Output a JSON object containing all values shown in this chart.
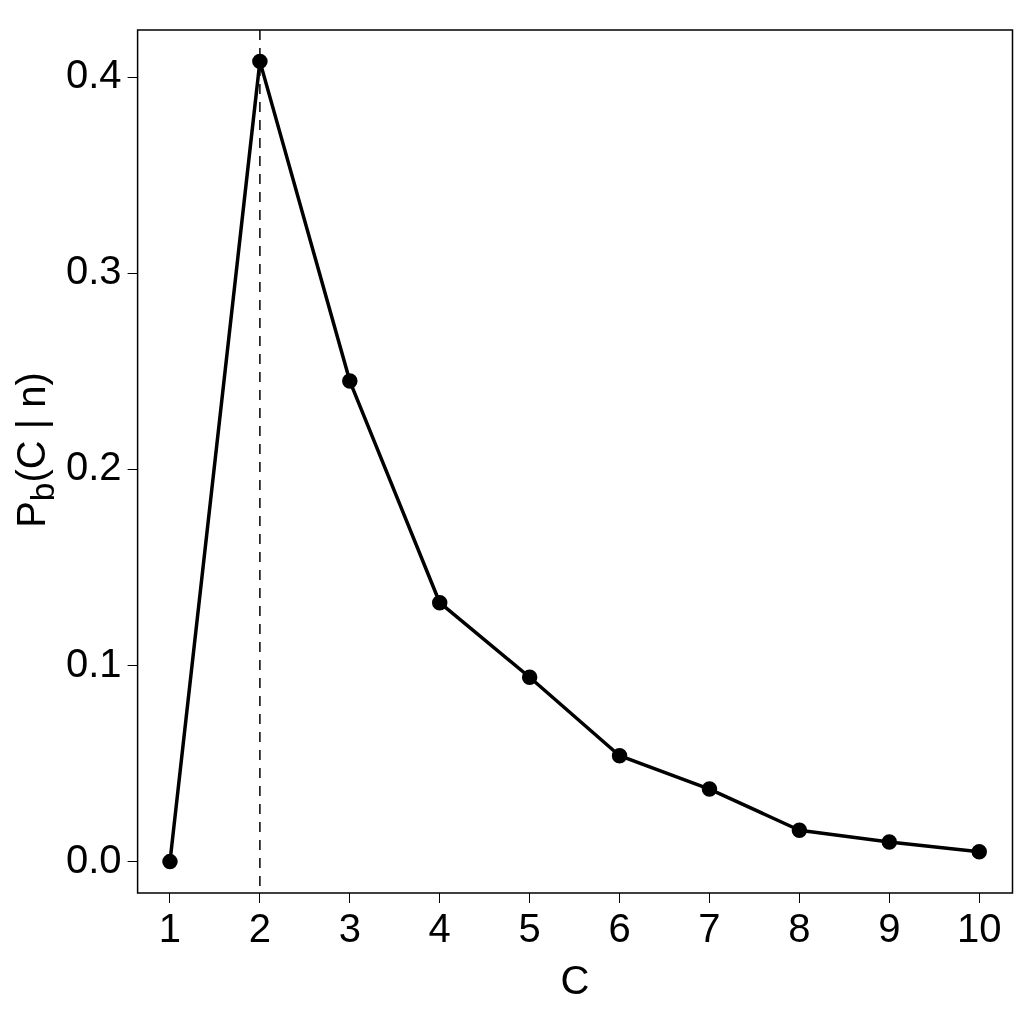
{
  "chart_data": {
    "type": "line",
    "xlabel": "C",
    "ylabel": "P$_{b}$(C | n)",
    "x": [
      1,
      2,
      3,
      4,
      5,
      6,
      7,
      8,
      9,
      10
    ],
    "series": [
      {
        "color": "#000000",
        "values": [
          0,
          0.408,
          0.245,
          0.132,
          0.094,
          0.054,
          0.037,
          0.016,
          0.01,
          0.005
        ]
      }
    ],
    "xlim": [
      0.64,
      10.37
    ],
    "xticks": [
      1,
      2,
      3,
      4,
      5,
      6,
      7,
      8,
      9,
      10
    ],
    "ylim": [
      -0.016,
      0.424
    ],
    "yticks": [
      {
        "value": 0,
        "label": "0.0"
      },
      0.1,
      0.2,
      0.3,
      0.4
    ],
    "ref_lines": [
      {
        "axis": "x",
        "value": 2,
        "color": "#000000",
        "line_style": "dashed"
      }
    ],
    "grid": false,
    "legend": false,
    "marker": "circle",
    "line_style": "solid"
  }
}
